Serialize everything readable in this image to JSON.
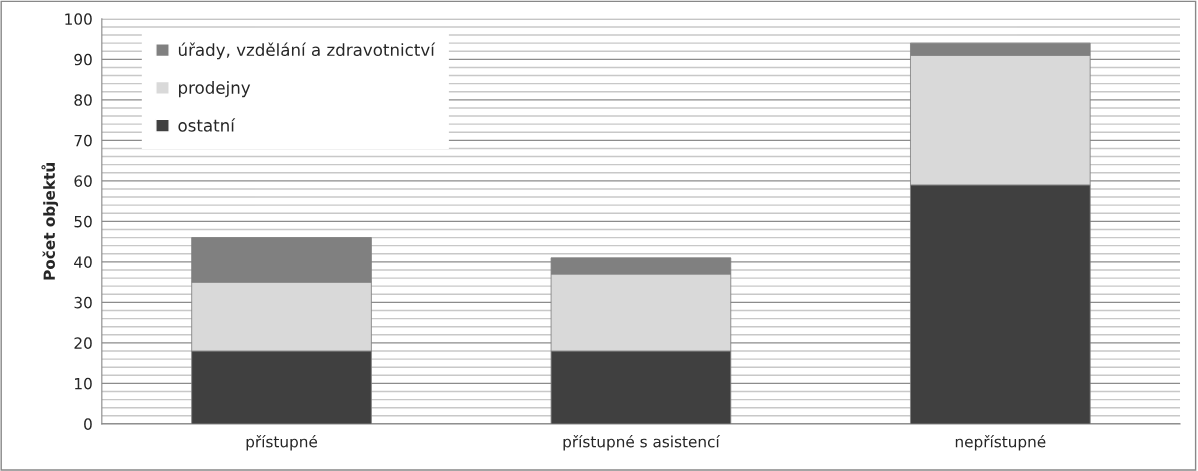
{
  "chart_data": {
    "type": "bar",
    "stacked": true,
    "ylabel": "Počet objektů",
    "categories": [
      "přístupné",
      "přístupné s asistencí",
      "nepřístupné"
    ],
    "series": [
      {
        "name": "ostatní",
        "color": "#404040",
        "values": [
          18,
          18,
          59
        ]
      },
      {
        "name": "prodejny",
        "color": "#d9d9d9",
        "values": [
          17,
          19,
          32
        ]
      },
      {
        "name": "úřady, vzdělání a zdravotnictví",
        "color": "#808080",
        "values": [
          11,
          4,
          3
        ]
      }
    ],
    "ylim": [
      0,
      100
    ],
    "yticks": [
      0,
      {
        "value": 2,
        "label": null
      },
      {
        "value": 4,
        "label": null
      },
      {
        "value": 6,
        "label": null
      },
      {
        "value": 8,
        "label": null
      },
      10,
      {
        "value": 12,
        "label": null
      },
      {
        "value": 14,
        "label": null
      },
      {
        "value": 16,
        "label": null
      },
      {
        "value": 18,
        "label": null
      },
      20,
      {
        "value": 22,
        "label": null
      },
      {
        "value": 24,
        "label": null
      },
      {
        "value": 26,
        "label": null
      },
      {
        "value": 28,
        "label": null
      },
      30,
      {
        "value": 32,
        "label": null
      },
      {
        "value": 34,
        "label": null
      },
      {
        "value": 36,
        "label": null
      },
      {
        "value": 38,
        "label": null
      },
      40,
      {
        "value": 42,
        "label": null
      },
      {
        "value": 44,
        "label": null
      },
      {
        "value": 46,
        "label": null
      },
      {
        "value": 48,
        "label": null
      },
      50,
      {
        "value": 52,
        "label": null
      },
      {
        "value": 54,
        "label": null
      },
      {
        "value": 56,
        "label": null
      },
      {
        "value": 58,
        "label": null
      },
      60,
      {
        "value": 62,
        "label": null
      },
      {
        "value": 64,
        "label": null
      },
      {
        "value": 66,
        "label": null
      },
      {
        "value": 68,
        "label": null
      },
      70,
      {
        "value": 72,
        "label": null
      },
      {
        "value": 74,
        "label": null
      },
      {
        "value": 76,
        "label": null
      },
      {
        "value": 78,
        "label": null
      },
      80,
      {
        "value": 82,
        "label": null
      },
      {
        "value": 84,
        "label": null
      },
      {
        "value": 86,
        "label": null
      },
      {
        "value": 88,
        "label": null
      },
      90,
      {
        "value": 92,
        "label": null
      },
      {
        "value": 94,
        "label": null
      },
      {
        "value": 96,
        "label": null
      },
      {
        "value": 98,
        "label": null
      },
      100
    ],
    "grid": "y",
    "legend": "top left"
  }
}
